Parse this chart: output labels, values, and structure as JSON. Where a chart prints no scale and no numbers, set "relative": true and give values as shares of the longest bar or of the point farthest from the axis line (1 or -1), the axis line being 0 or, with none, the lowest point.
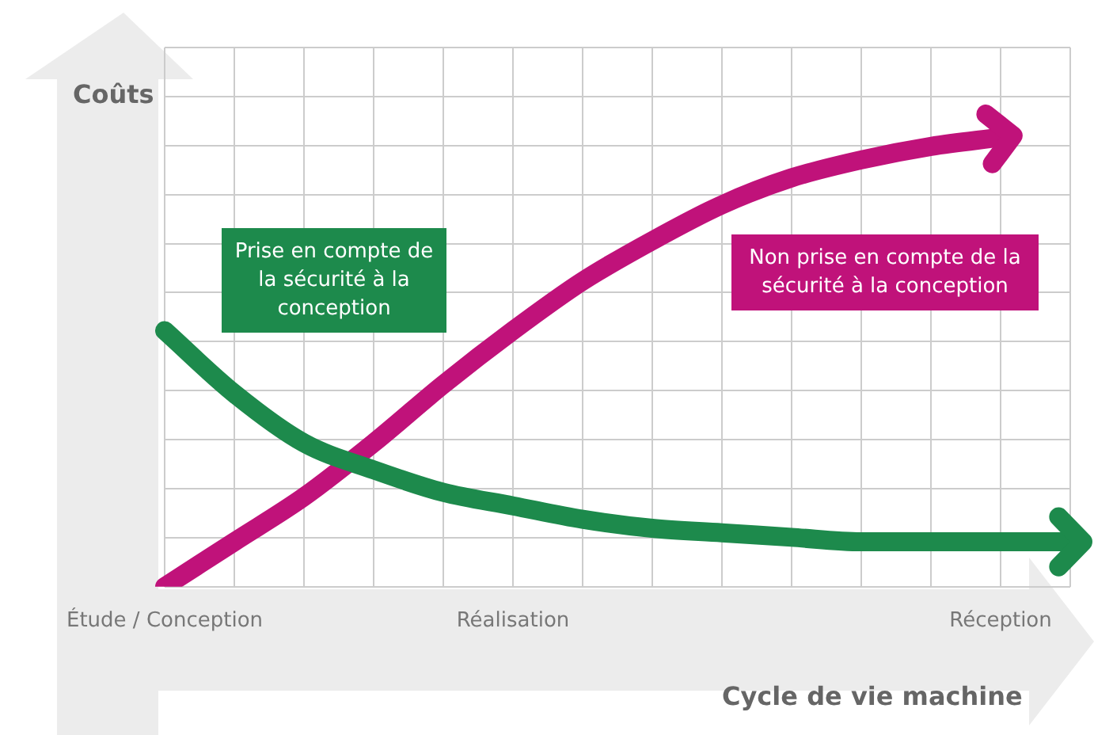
{
  "chart_data": {
    "type": "line",
    "relative": true,
    "ylabel": "Coûts",
    "xlabel": "Cycle de vie machine",
    "categories": [
      "Étude / Conception",
      null,
      null,
      null,
      null,
      "Réalisation",
      null,
      null,
      null,
      null,
      null,
      null,
      "Réception",
      null
    ],
    "series": [
      {
        "name": "Prise en compte de la sécurité à la conception",
        "color": "#1d8a4c",
        "values": [
          0.57,
          0.43,
          0.32,
          0.26,
          0.21,
          0.18,
          0.15,
          0.13,
          0.12,
          0.11,
          0.1,
          0.1,
          0.1,
          0.1
        ]
      },
      {
        "name": "Non prise en compte de la sécurité à la conception",
        "color": "#c0127a",
        "values": [
          0,
          0.1,
          0.2,
          0.32,
          0.45,
          0.57,
          0.68,
          0.77,
          0.85,
          0.91,
          0.95,
          0.98,
          1,
          null
        ]
      }
    ],
    "grid": true,
    "legend": false,
    "marker": "none",
    "line_style": "solid"
  }
}
